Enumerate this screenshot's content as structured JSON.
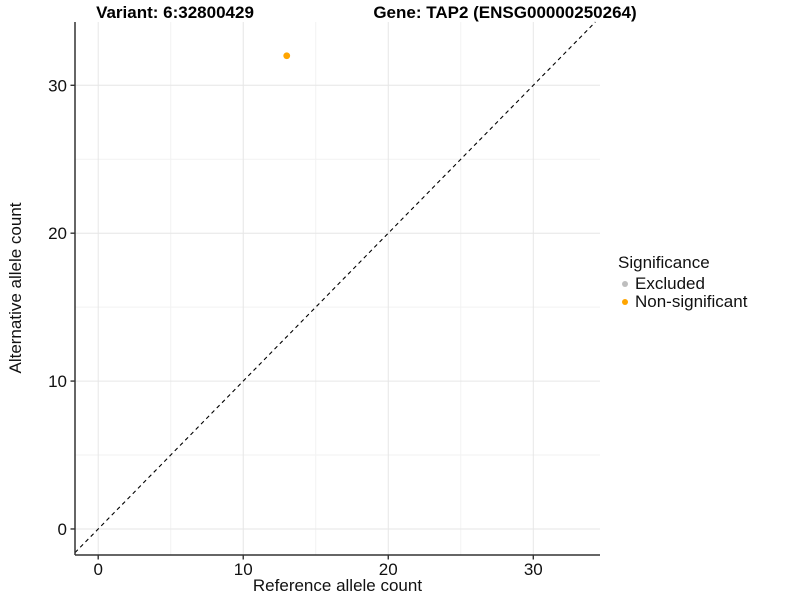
{
  "chart_data": {
    "type": "scatter",
    "title_left": "Variant: 6:32800429",
    "title_right": "Gene: TAP2 (ENSG00000250264)",
    "xlabel": "Reference allele count",
    "ylabel": "Alternative allele count",
    "xlim": [
      -1.6,
      34.6
    ],
    "ylim": [
      -1.76,
      34.28
    ],
    "xticks": [
      0,
      10,
      20,
      30
    ],
    "yticks": [
      0,
      10,
      20,
      30
    ],
    "minor_xticks": [
      5,
      15,
      25
    ],
    "minor_yticks": [
      5,
      15,
      25
    ],
    "grid": "on",
    "identity_line": {
      "style": "dashed",
      "color": "#000000"
    },
    "points": [
      {
        "x": 13,
        "y": 32,
        "series": "Non-significant",
        "color": "#FFA500"
      }
    ],
    "legend": {
      "title": "Significance",
      "position": "right",
      "items": [
        {
          "label": "Excluded",
          "color": "#BEBEBE"
        },
        {
          "label": "Non-significant",
          "color": "#FFA500"
        }
      ]
    },
    "colors": {
      "major_grid": "#e6e6e6",
      "minor_grid": "#f2f2f2",
      "axis_line": "#333333",
      "tick_text": "#111111",
      "panel_background": "#ffffff"
    }
  }
}
